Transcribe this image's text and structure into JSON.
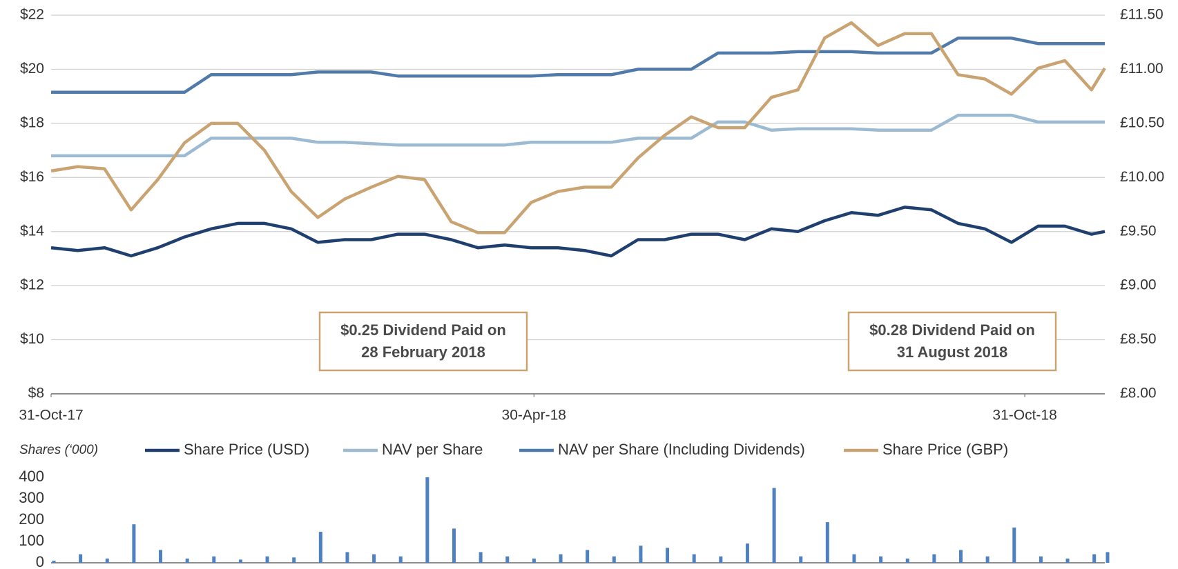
{
  "chart_data": [
    {
      "type": "line",
      "x": [
        "2017-10-31",
        "2017-11-10",
        "2017-11-20",
        "2017-11-30",
        "2017-12-10",
        "2017-12-20",
        "2017-12-30",
        "2018-01-09",
        "2018-01-19",
        "2018-01-29",
        "2018-02-08",
        "2018-02-18",
        "2018-02-28",
        "2018-03-10",
        "2018-03-20",
        "2018-03-30",
        "2018-04-09",
        "2018-04-19",
        "2018-04-29",
        "2018-05-09",
        "2018-05-19",
        "2018-05-29",
        "2018-06-08",
        "2018-06-18",
        "2018-06-28",
        "2018-07-08",
        "2018-07-18",
        "2018-07-28",
        "2018-08-07",
        "2018-08-17",
        "2018-08-27",
        "2018-09-06",
        "2018-09-16",
        "2018-09-26",
        "2018-10-06",
        "2018-10-16",
        "2018-10-26",
        "2018-11-05",
        "2018-11-15",
        "2018-11-25",
        "2018-11-30"
      ],
      "xlim": [
        "2017-10-31",
        "2018-11-30"
      ],
      "xticks": [
        {
          "value": "2017-10-31",
          "label": "31-Oct-17"
        },
        {
          "value": "2018-04-30",
          "label": "30-Apr-18"
        },
        {
          "value": "2018-10-31",
          "label": "31-Oct-18"
        }
      ],
      "ylim": [
        8,
        22
      ],
      "yticks": [
        {
          "value": 8,
          "label": "$8"
        },
        {
          "value": 10,
          "label": "$10"
        },
        {
          "value": 12,
          "label": "$12"
        },
        {
          "value": 14,
          "label": "$14"
        },
        {
          "value": 16,
          "label": "$16"
        },
        {
          "value": 18,
          "label": "$18"
        },
        {
          "value": 20,
          "label": "$20"
        },
        {
          "value": 22,
          "label": "$22"
        }
      ],
      "y2lim": [
        8,
        11.5
      ],
      "y2ticks": [
        {
          "value": 8,
          "label": "£8.00"
        },
        {
          "value": 8.5,
          "label": "£8.50"
        },
        {
          "value": 9,
          "label": "£9.00"
        },
        {
          "value": 9.5,
          "label": "£9.50"
        },
        {
          "value": 10,
          "label": "£10.00"
        },
        {
          "value": 10.5,
          "label": "£10.50"
        },
        {
          "value": 11,
          "label": "£11.00"
        },
        {
          "value": 11.5,
          "label": "£11.50"
        }
      ],
      "grid": true,
      "series": [
        {
          "name": "Share Price (USD)",
          "color": "#1f3f6e",
          "values": [
            13.4,
            13.3,
            13.4,
            13.1,
            13.4,
            13.8,
            14.1,
            14.3,
            14.3,
            14.1,
            13.6,
            13.7,
            13.7,
            13.9,
            13.9,
            13.7,
            13.4,
            13.5,
            13.4,
            13.4,
            13.3,
            13.1,
            13.7,
            13.7,
            13.9,
            13.9,
            13.7,
            14.1,
            14.0,
            14.4,
            14.7,
            14.6,
            14.9,
            14.8,
            14.3,
            14.1,
            13.6,
            14.2,
            14.2,
            13.9,
            14.0
          ]
        },
        {
          "name": "NAV per Share",
          "color": "#9cbad2",
          "values": [
            16.8,
            16.8,
            16.8,
            16.8,
            16.8,
            16.8,
            17.45,
            17.45,
            17.45,
            17.45,
            17.3,
            17.3,
            17.25,
            17.2,
            17.2,
            17.2,
            17.2,
            17.2,
            17.3,
            17.3,
            17.3,
            17.3,
            17.45,
            17.45,
            17.45,
            18.05,
            18.05,
            17.75,
            17.8,
            17.8,
            17.8,
            17.75,
            17.75,
            17.75,
            18.3,
            18.3,
            18.3,
            18.05,
            18.05,
            18.05,
            18.05
          ]
        },
        {
          "name": "NAV per Share (Including Dividends)",
          "color": "#4f7aaa",
          "values": [
            19.15,
            19.15,
            19.15,
            19.15,
            19.15,
            19.15,
            19.8,
            19.8,
            19.8,
            19.8,
            19.9,
            19.9,
            19.9,
            19.75,
            19.75,
            19.75,
            19.75,
            19.75,
            19.75,
            19.8,
            19.8,
            19.8,
            20.0,
            20.0,
            20.0,
            20.6,
            20.6,
            20.6,
            20.65,
            20.65,
            20.65,
            20.6,
            20.6,
            20.6,
            21.15,
            21.15,
            21.15,
            20.95,
            20.95,
            20.95,
            20.95
          ]
        },
        {
          "name": "Share Price (GBP)",
          "color": "#c9a472",
          "axis": "y2",
          "values": [
            10.06,
            10.1,
            10.08,
            9.7,
            9.98,
            10.32,
            10.5,
            10.5,
            10.25,
            9.87,
            9.63,
            9.8,
            9.91,
            10.01,
            9.98,
            9.59,
            9.49,
            9.49,
            9.77,
            9.87,
            9.91,
            9.91,
            10.18,
            10.39,
            10.56,
            10.46,
            10.46,
            10.74,
            10.81,
            11.29,
            11.43,
            11.22,
            11.33,
            11.33,
            10.95,
            10.91,
            10.77,
            11.01,
            11.08,
            10.81,
            11.01
          ]
        }
      ],
      "annotations": [
        {
          "lines": [
            "$0.25 Dividend Paid on",
            "28 February 2018"
          ]
        },
        {
          "lines": [
            "$0.28 Dividend Paid on",
            "31 August 2018"
          ]
        }
      ]
    },
    {
      "type": "bar",
      "y_label": "Shares (‘000)",
      "color": "#4f80bf",
      "values": [
        10,
        40,
        20,
        180,
        60,
        20,
        30,
        15,
        30,
        25,
        145,
        50,
        40,
        30,
        400,
        160,
        50,
        30,
        20,
        40,
        60,
        30,
        80,
        70,
        40,
        30,
        90,
        350,
        30,
        190,
        40,
        30,
        20,
        40,
        60,
        30,
        165,
        30,
        20,
        40,
        50
      ],
      "ylim": [
        0,
        400
      ],
      "yticks": [
        0,
        100,
        200,
        300,
        400
      ]
    }
  ]
}
